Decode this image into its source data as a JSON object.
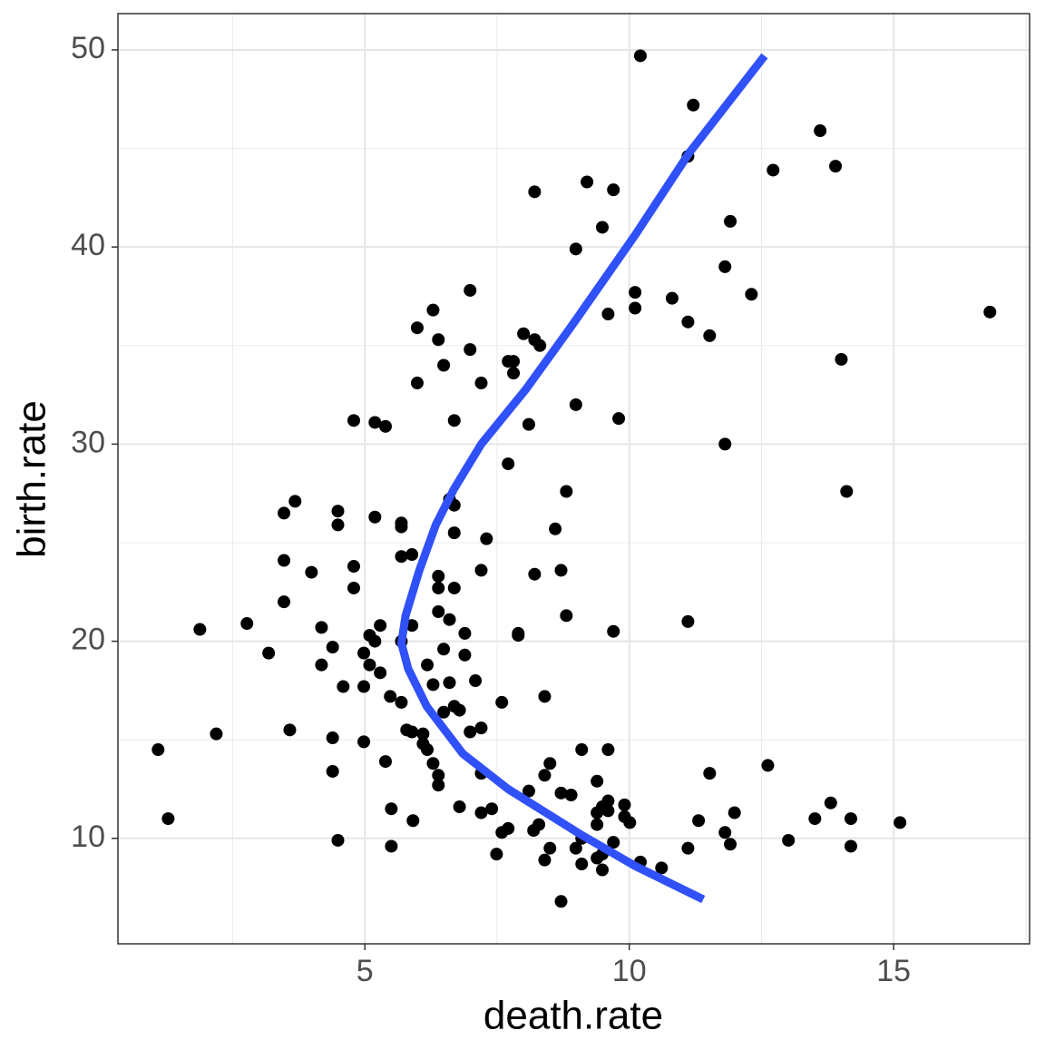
{
  "chart_data": {
    "type": "scatter",
    "xlabel": "death.rate",
    "ylabel": "birth.rate",
    "xlim": [
      0.33,
      17.57
    ],
    "ylim": [
      4.65,
      51.84
    ],
    "xticks": [
      5,
      10,
      15
    ],
    "yticks": [
      10,
      20,
      30,
      40,
      50
    ],
    "x_minor_grid": [
      2.5,
      7.5,
      12.5,
      17.5
    ],
    "y_minor_grid": [
      15,
      25,
      35,
      45
    ],
    "grid": true,
    "color": "#000000",
    "x": [
      10.21,
      11.21,
      13.61,
      11.11,
      13.9,
      12.72,
      8.21,
      9.2,
      9.7,
      11.91,
      9.49,
      8.99,
      11.81,
      10.11,
      10.81,
      12.31,
      10.11,
      16.82,
      6.99,
      6.29,
      9.6,
      11.11,
      11.52,
      5.99,
      6.39,
      8.0,
      8.21,
      8.31,
      6.99,
      7.71,
      7.81,
      14.01,
      6.49,
      7.81,
      5.99,
      7.2,
      8.99,
      9.8,
      4.79,
      5.19,
      5.39,
      6.69,
      8.1,
      11.81,
      7.71,
      8.81,
      14.11,
      3.68,
      6.6,
      6.69,
      3.47,
      4.49,
      5.19,
      5.69,
      4.49,
      5.69,
      6.69,
      8.6,
      7.3,
      5.69,
      5.89,
      3.47,
      4.79,
      7.2,
      8.71,
      3.99,
      8.21,
      6.39,
      6.39,
      6.69,
      4.79,
      3.47,
      6.39,
      8.81,
      6.6,
      11.11,
      2.77,
      5.89,
      5.29,
      1.88,
      4.18,
      9.7,
      7.9,
      7.9,
      6.89,
      5.09,
      5.19,
      5.69,
      6.49,
      4.39,
      3.18,
      4.98,
      6.89,
      5.09,
      4.18,
      5.29,
      6.18,
      7.09,
      6.6,
      6.29,
      4.59,
      4.98,
      5.48,
      8.4,
      5.69,
      7.59,
      6.69,
      6.79,
      6.49,
      3.58,
      5.79,
      5.89,
      7.2,
      6.99,
      4.39,
      6.1,
      2.19,
      6.1,
      4.98,
      6.18,
      1.09,
      9.1,
      9.6,
      5.39,
      8.5,
      6.29,
      12.62,
      11.52,
      4.39,
      7.2,
      8.4,
      6.39,
      6.39,
      9.39,
      8.1,
      8.71,
      8.9,
      9.6,
      13.81,
      6.79,
      9.91,
      9.49,
      5.5,
      7.4,
      7.2,
      11.99,
      9.39,
      9.6,
      1.28,
      13.51,
      14.19,
      5.91,
      11.31,
      10.01,
      15.12,
      9.91,
      8.29,
      9.39,
      7.71,
      7.59,
      11.81,
      8.19,
      13.01,
      4.49,
      9.1,
      11.91,
      9.7,
      5.5,
      14.19,
      11.11,
      8.5,
      8.99,
      7.49,
      9.39,
      9.49,
      8.4,
      9.1,
      10.21,
      10.61,
      9.49,
      8.71
    ],
    "y": [
      49.7,
      47.2,
      45.9,
      44.6,
      44.1,
      43.9,
      42.8,
      43.3,
      42.9,
      41.3,
      41.0,
      39.9,
      39.0,
      37.7,
      37.4,
      37.6,
      36.9,
      36.7,
      37.8,
      36.8,
      36.6,
      36.2,
      35.5,
      35.9,
      35.3,
      35.6,
      35.3,
      35.0,
      34.8,
      34.2,
      34.2,
      34.3,
      34.0,
      33.6,
      33.1,
      33.1,
      32.0,
      31.3,
      31.2,
      31.1,
      30.9,
      31.2,
      31.0,
      30.0,
      29.0,
      27.6,
      27.6,
      27.1,
      27.2,
      26.9,
      26.5,
      26.6,
      26.3,
      26.0,
      25.9,
      25.8,
      25.5,
      25.7,
      25.2,
      24.3,
      24.4,
      24.1,
      23.8,
      23.6,
      23.6,
      23.5,
      23.4,
      23.3,
      22.7,
      22.7,
      22.7,
      22.0,
      21.5,
      21.3,
      21.1,
      21.0,
      20.9,
      20.8,
      20.8,
      20.6,
      20.7,
      20.5,
      20.4,
      20.3,
      20.4,
      20.3,
      20.0,
      20.0,
      19.6,
      19.7,
      19.4,
      19.4,
      19.3,
      18.8,
      18.8,
      18.4,
      18.8,
      18.0,
      17.9,
      17.8,
      17.7,
      17.7,
      17.2,
      17.2,
      16.9,
      16.9,
      16.7,
      16.5,
      16.4,
      15.5,
      15.5,
      15.4,
      15.6,
      15.4,
      15.1,
      15.3,
      15.3,
      14.8,
      14.9,
      14.5,
      14.5,
      14.5,
      14.5,
      13.9,
      13.8,
      13.8,
      13.7,
      13.3,
      13.4,
      13.3,
      13.2,
      13.2,
      12.7,
      12.9,
      12.4,
      12.3,
      12.2,
      11.9,
      11.8,
      11.6,
      11.7,
      11.6,
      11.5,
      11.5,
      11.3,
      11.3,
      11.3,
      11.4,
      11.0,
      11.0,
      11.0,
      10.9,
      10.9,
      10.8,
      10.8,
      11.1,
      10.7,
      10.7,
      10.5,
      10.3,
      10.3,
      10.4,
      9.9,
      9.9,
      10.0,
      9.7,
      9.8,
      9.6,
      9.6,
      9.5,
      9.5,
      9.5,
      9.2,
      9.0,
      9.2,
      8.9,
      8.7,
      8.8,
      8.5,
      8.4,
      6.8
    ],
    "fit": {
      "color": "#3050F8",
      "x": [
        12.56,
        11.14,
        10.11,
        8.91,
        8.05,
        7.2,
        6.68,
        6.34,
        6.03,
        5.77,
        5.69,
        5.82,
        6.17,
        6.85,
        7.71,
        9.08,
        10.11,
        11.4
      ],
      "y": [
        49.7,
        44.8,
        40.6,
        36.0,
        32.8,
        30.0,
        27.7,
        25.9,
        23.6,
        21.3,
        19.9,
        18.6,
        16.7,
        14.3,
        12.5,
        10.2,
        8.6,
        6.9
      ]
    }
  }
}
